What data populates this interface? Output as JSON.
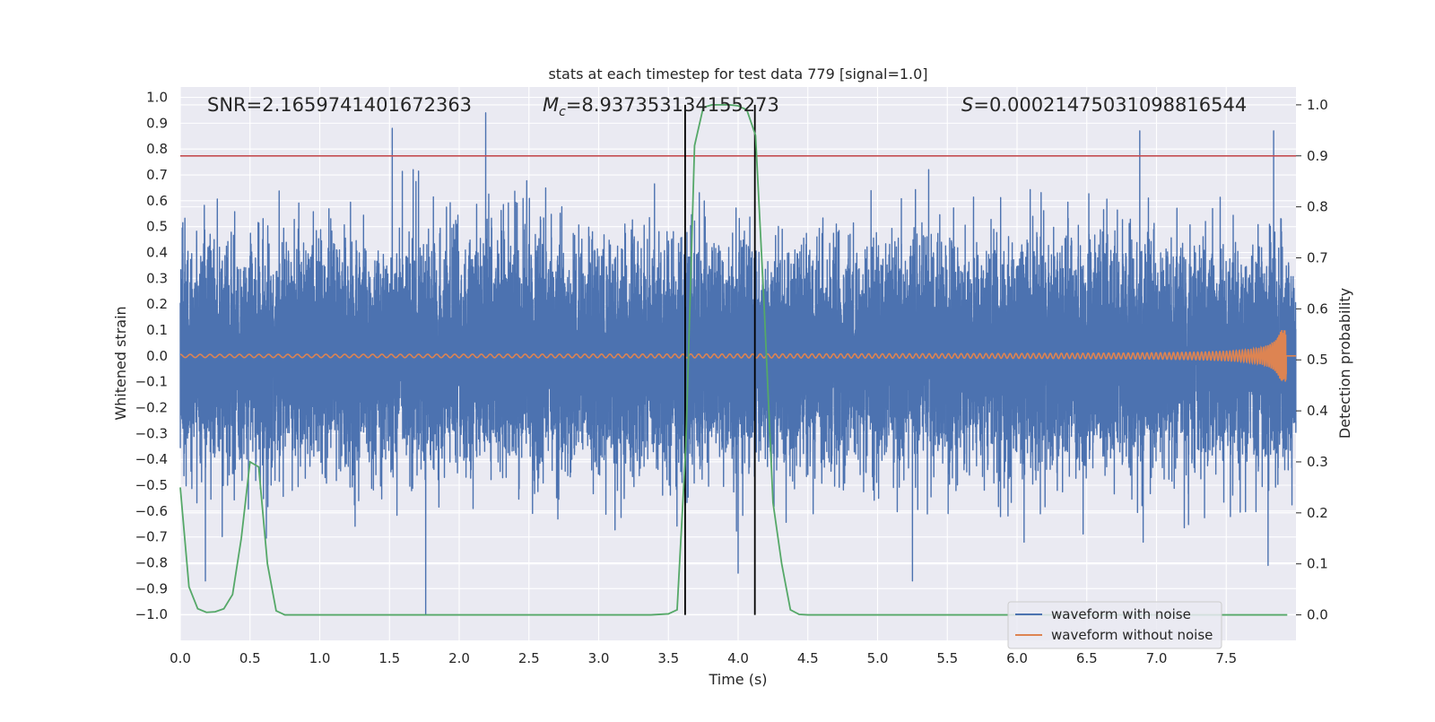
{
  "chart_data": {
    "type": "line",
    "title": "stats at each timestep for test data 779 [signal=1.0]",
    "xlabel": "Time (s)",
    "ylabel": "Whitened strain",
    "ylabel_right": "Detection probability",
    "xlim": [
      0.0,
      8.0
    ],
    "ylim": [
      -1.1,
      1.04
    ],
    "ylim_right": [
      -0.05,
      1.035
    ],
    "xticks": [
      0.0,
      0.5,
      1.0,
      1.5,
      2.0,
      2.5,
      3.0,
      3.5,
      4.0,
      4.5,
      5.0,
      5.5,
      6.0,
      6.5,
      7.0,
      7.5
    ],
    "xtick_labels": [
      "0.0",
      "0.5",
      "1.0",
      "1.5",
      "2.0",
      "2.5",
      "3.0",
      "3.5",
      "4.0",
      "4.5",
      "5.0",
      "5.5",
      "6.0",
      "6.5",
      "7.0",
      "7.5"
    ],
    "yticks": [
      1.0,
      0.9,
      0.8,
      0.7,
      0.6,
      0.5,
      0.4,
      0.3,
      0.2,
      0.1,
      0.0,
      -0.1,
      -0.2,
      -0.3,
      -0.4,
      -0.5,
      -0.6,
      -0.7,
      -0.8,
      -0.9,
      -1.0
    ],
    "ytick_labels": [
      "1.0",
      "0.9",
      "0.8",
      "0.7",
      "0.6",
      "0.5",
      "0.4",
      "0.3",
      "0.2",
      "0.1",
      "0.0",
      "−0.1",
      "−0.2",
      "−0.3",
      "−0.4",
      "−0.5",
      "−0.6",
      "−0.7",
      "−0.8",
      "−0.9",
      "−1.0"
    ],
    "yticks_right": [
      1.0,
      0.9,
      0.8,
      0.7,
      0.6,
      0.5,
      0.4,
      0.3,
      0.2,
      0.1,
      0.0
    ],
    "ytick_labels_right": [
      "1.0",
      "0.9",
      "0.8",
      "0.7",
      "0.6",
      "0.5",
      "0.4",
      "0.3",
      "0.2",
      "0.1",
      "0.0"
    ],
    "grid": true,
    "annotations": {
      "snr": "SNR=2.1659741401672363",
      "mc_symbol": "M",
      "mc_subscript": "c",
      "mc_value": "=8.937353134155273",
      "s_symbol": "S",
      "s_value": "=0.00021475031098816544"
    },
    "threshold_line": {
      "y_right": 0.9,
      "color": "#c44e52"
    },
    "event_window": {
      "x_start": 3.62,
      "x_end": 4.12,
      "color": "#000000"
    },
    "series": [
      {
        "name": "waveform with noise",
        "axis": "left",
        "color": "#4c72b0",
        "description_points": {
          "sample_rate_hz": 2048,
          "noise_rms": 0.2,
          "notable_peaks": [
            [
              1.52,
              0.88
            ],
            [
              2.19,
              0.94
            ],
            [
              6.88,
              0.87
            ],
            [
              7.84,
              0.87
            ]
          ],
          "notable_troughs": [
            [
              0.18,
              -0.87
            ],
            [
              1.76,
              -1.0
            ],
            [
              4.0,
              -0.84
            ],
            [
              5.25,
              -0.87
            ],
            [
              7.8,
              -0.81
            ]
          ]
        }
      },
      {
        "name": "waveform without noise",
        "axis": "left",
        "color": "#dd8452",
        "chirp": {
          "t_merger": 7.93,
          "amp_start": 0.006,
          "amp_peak": 0.1,
          "f_start_hz": 14
        }
      },
      {
        "name": "detection probability",
        "axis": "right",
        "color": "#55a868",
        "x": [
          0.0,
          0.0625,
          0.125,
          0.1875,
          0.25,
          0.3125,
          0.375,
          0.4375,
          0.5,
          0.5625,
          0.625,
          0.6875,
          0.75,
          0.8125,
          1.0,
          2.0,
          3.0,
          3.375,
          3.5,
          3.5625,
          3.625,
          3.6875,
          3.75,
          3.8125,
          3.875,
          3.9375,
          4.0,
          4.0625,
          4.125,
          4.1875,
          4.25,
          4.3125,
          4.375,
          4.4375,
          4.5,
          5.0,
          6.0,
          7.0,
          7.9375
        ],
        "values": [
          0.25,
          0.055,
          0.012,
          0.005,
          0.006,
          0.012,
          0.04,
          0.15,
          0.3,
          0.29,
          0.1,
          0.008,
          0.0,
          0.0,
          0.0,
          0.0,
          0.0,
          0.0,
          0.002,
          0.01,
          0.33,
          0.92,
          0.995,
          1.0,
          1.0,
          1.0,
          0.998,
          0.99,
          0.94,
          0.6,
          0.22,
          0.1,
          0.01,
          0.001,
          0.0,
          0.0,
          0.0,
          0.0,
          0.0
        ]
      }
    ],
    "legend": {
      "placement": "lower-right",
      "entries": [
        {
          "label": "waveform with noise",
          "color": "#4c72b0"
        },
        {
          "label": "waveform without noise",
          "color": "#dd8452"
        }
      ]
    }
  },
  "colors": {
    "axes_bg": "#eaeaf2",
    "grid": "#ffffff",
    "text": "#262626"
  }
}
